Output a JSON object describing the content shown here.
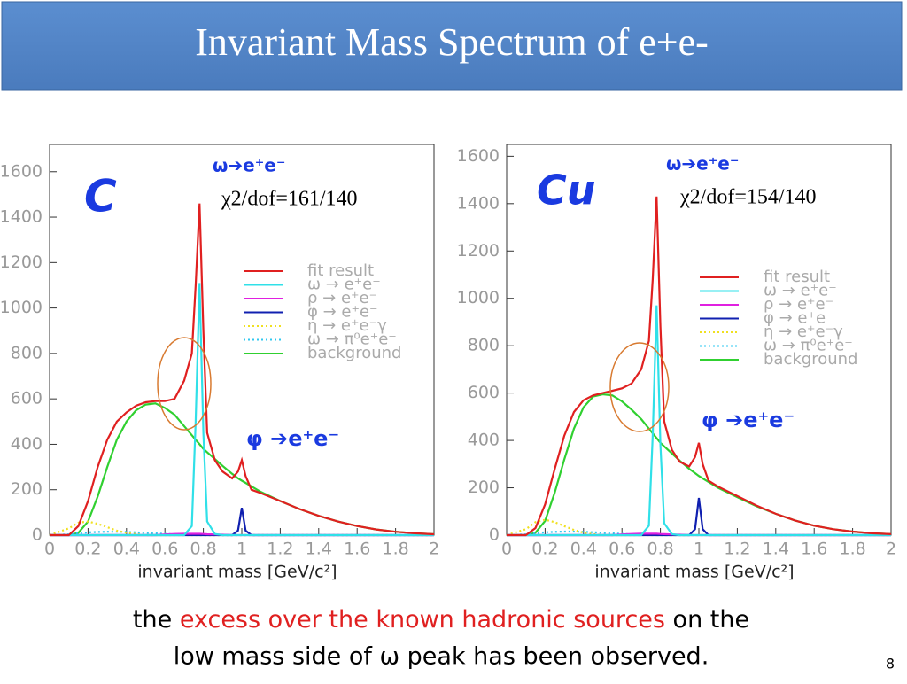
{
  "title": "Invariant Mass Spectrum of e+e-",
  "footer": {
    "before": "the ",
    "highlight": "excess over the known hadronic sources",
    "after": " on the",
    "line2": "low mass side of ω peak has been observed."
  },
  "page_number": "8",
  "chart_data": [
    {
      "type": "line",
      "xlabel": "invariant mass [GeV/c²]",
      "xlim": [
        0,
        2
      ],
      "ylim": [
        0,
        1720
      ],
      "xticks": [
        0,
        0.2,
        0.4,
        0.6,
        0.8,
        1,
        1.2,
        1.4,
        1.6,
        1.8,
        2
      ],
      "yticks": [
        0,
        200,
        400,
        600,
        800,
        1000,
        1200,
        1400,
        1600
      ],
      "annotations": [
        "C",
        "ω➔e⁺e⁻",
        "χ2/dof=161/140",
        "φ ➔e⁺e⁻"
      ],
      "x": [
        0,
        0.1,
        0.15,
        0.2,
        0.25,
        0.3,
        0.35,
        0.4,
        0.45,
        0.5,
        0.55,
        0.6,
        0.65,
        0.7,
        0.74,
        0.76,
        0.78,
        0.8,
        0.82,
        0.86,
        0.9,
        0.95,
        0.98,
        1.0,
        1.02,
        1.05,
        1.1,
        1.2,
        1.3,
        1.4,
        1.5,
        1.6,
        1.7,
        1.8,
        1.9,
        2.0
      ],
      "series": [
        {
          "name": "fit result",
          "color": "#e02020",
          "style": "solid",
          "values": [
            0,
            0,
            40,
            150,
            300,
            420,
            500,
            540,
            570,
            585,
            590,
            590,
            600,
            680,
            800,
            1100,
            1460,
            900,
            450,
            330,
            280,
            250,
            280,
            330,
            260,
            200,
            185,
            150,
            115,
            85,
            60,
            40,
            25,
            15,
            8,
            4
          ]
        },
        {
          "name": "ω → e⁺e⁻",
          "color": "#30e0e8",
          "style": "solid",
          "values": [
            0,
            0,
            0,
            0,
            0,
            0,
            0,
            0,
            0,
            0,
            0,
            0,
            0,
            0,
            40,
            500,
            1110,
            450,
            60,
            5,
            0,
            0,
            0,
            0,
            0,
            0,
            0,
            0,
            0,
            0,
            0,
            0,
            0,
            0,
            0,
            0
          ]
        },
        {
          "name": "ρ → e⁺e⁻",
          "color": "#e020e0",
          "style": "solid",
          "values": [
            0,
            0,
            0,
            0,
            0,
            0,
            0,
            0,
            0,
            0,
            0,
            3,
            5,
            6,
            6,
            6,
            6,
            5,
            4,
            3,
            2,
            0,
            0,
            0,
            0,
            0,
            0,
            0,
            0,
            0,
            0,
            0,
            0,
            0,
            0,
            0
          ]
        },
        {
          "name": "φ → e⁺e⁻",
          "color": "#1020b0",
          "style": "solid",
          "values": [
            0,
            0,
            0,
            0,
            0,
            0,
            0,
            0,
            0,
            0,
            0,
            0,
            0,
            0,
            0,
            0,
            0,
            0,
            0,
            0,
            0,
            0,
            20,
            120,
            20,
            0,
            0,
            0,
            0,
            0,
            0,
            0,
            0,
            0,
            0,
            0
          ]
        },
        {
          "name": "η → e⁺e⁻γ",
          "color": "#f0e020",
          "style": "dotted",
          "values": [
            0,
            30,
            55,
            60,
            50,
            35,
            20,
            10,
            4,
            0,
            0,
            0,
            0,
            0,
            0,
            0,
            0,
            0,
            0,
            0,
            0,
            0,
            0,
            0,
            0,
            0,
            0,
            0,
            0,
            0,
            0,
            0,
            0,
            0,
            0,
            0
          ]
        },
        {
          "name": "ω → π⁰e⁺e⁻",
          "color": "#30c8f0",
          "style": "dotted",
          "values": [
            0,
            3,
            8,
            12,
            14,
            15,
            15,
            14,
            12,
            10,
            8,
            5,
            3,
            2,
            1,
            1,
            0,
            0,
            0,
            0,
            0,
            0,
            0,
            0,
            0,
            0,
            0,
            0,
            0,
            0,
            0,
            0,
            0,
            0,
            0,
            0
          ]
        },
        {
          "name": "background",
          "color": "#30d030",
          "style": "solid",
          "values": [
            0,
            0,
            10,
            60,
            170,
            300,
            420,
            500,
            550,
            575,
            580,
            560,
            530,
            480,
            440,
            420,
            400,
            380,
            365,
            335,
            305,
            270,
            250,
            240,
            230,
            215,
            190,
            150,
            115,
            85,
            60,
            40,
            25,
            15,
            8,
            4
          ]
        }
      ]
    },
    {
      "type": "line",
      "xlabel": "invariant mass [GeV/c²]",
      "xlim": [
        0,
        2
      ],
      "ylim": [
        0,
        1650
      ],
      "xticks": [
        0,
        0.2,
        0.4,
        0.6,
        0.8,
        1,
        1.2,
        1.4,
        1.6,
        1.8,
        2
      ],
      "yticks": [
        0,
        200,
        400,
        600,
        800,
        1000,
        1200,
        1400,
        1600
      ],
      "annotations": [
        "Cu",
        "ω➔e⁺e⁻",
        "χ2/dof=154/140",
        "φ ➔e⁺e⁻"
      ],
      "x": [
        0,
        0.1,
        0.15,
        0.2,
        0.25,
        0.3,
        0.35,
        0.4,
        0.45,
        0.5,
        0.55,
        0.6,
        0.65,
        0.7,
        0.74,
        0.76,
        0.78,
        0.8,
        0.82,
        0.86,
        0.9,
        0.95,
        0.98,
        1.0,
        1.02,
        1.05,
        1.1,
        1.2,
        1.3,
        1.4,
        1.5,
        1.6,
        1.7,
        1.8,
        1.9,
        2.0
      ],
      "series": [
        {
          "name": "fit result",
          "color": "#e02020",
          "style": "solid",
          "values": [
            0,
            0,
            30,
            130,
            280,
            420,
            520,
            570,
            590,
            600,
            610,
            620,
            640,
            700,
            820,
            1080,
            1430,
            880,
            480,
            360,
            310,
            290,
            330,
            390,
            300,
            230,
            205,
            165,
            125,
            90,
            62,
            40,
            25,
            15,
            8,
            4
          ]
        },
        {
          "name": "ω → e⁺e⁻",
          "color": "#30e0e8",
          "style": "solid",
          "values": [
            0,
            0,
            0,
            0,
            0,
            0,
            0,
            0,
            0,
            0,
            0,
            0,
            0,
            0,
            40,
            420,
            970,
            380,
            50,
            4,
            0,
            0,
            0,
            0,
            0,
            0,
            0,
            0,
            0,
            0,
            0,
            0,
            0,
            0,
            0,
            0
          ]
        },
        {
          "name": "ρ → e⁺e⁻",
          "color": "#e020e0",
          "style": "solid",
          "values": [
            0,
            0,
            0,
            0,
            0,
            0,
            0,
            0,
            0,
            0,
            0,
            3,
            5,
            6,
            6,
            6,
            6,
            5,
            4,
            3,
            2,
            0,
            0,
            0,
            0,
            0,
            0,
            0,
            0,
            0,
            0,
            0,
            0,
            0,
            0,
            0
          ]
        },
        {
          "name": "φ → e⁺e⁻",
          "color": "#1020b0",
          "style": "solid",
          "values": [
            0,
            0,
            0,
            0,
            0,
            0,
            0,
            0,
            0,
            0,
            0,
            0,
            0,
            0,
            0,
            0,
            0,
            0,
            0,
            0,
            0,
            0,
            25,
            157,
            25,
            0,
            0,
            0,
            0,
            0,
            0,
            0,
            0,
            0,
            0,
            0
          ]
        },
        {
          "name": "η → e⁺e⁻γ",
          "color": "#f0e020",
          "style": "dotted",
          "values": [
            0,
            25,
            55,
            65,
            55,
            38,
            22,
            10,
            4,
            0,
            0,
            0,
            0,
            0,
            0,
            0,
            0,
            0,
            0,
            0,
            0,
            0,
            0,
            0,
            0,
            0,
            0,
            0,
            0,
            0,
            0,
            0,
            0,
            0,
            0,
            0
          ]
        },
        {
          "name": "ω → π⁰e⁺e⁻",
          "color": "#30c8f0",
          "style": "dotted",
          "values": [
            0,
            3,
            8,
            12,
            14,
            15,
            15,
            14,
            12,
            10,
            8,
            5,
            3,
            2,
            1,
            1,
            0,
            0,
            0,
            0,
            0,
            0,
            0,
            0,
            0,
            0,
            0,
            0,
            0,
            0,
            0,
            0,
            0,
            0,
            0,
            0
          ]
        },
        {
          "name": "background",
          "color": "#30d030",
          "style": "solid",
          "values": [
            0,
            0,
            10,
            60,
            180,
            320,
            450,
            540,
            585,
            595,
            590,
            565,
            530,
            490,
            450,
            430,
            410,
            390,
            375,
            345,
            315,
            280,
            262,
            250,
            240,
            225,
            200,
            160,
            122,
            90,
            62,
            40,
            25,
            15,
            8,
            4
          ]
        }
      ]
    }
  ]
}
